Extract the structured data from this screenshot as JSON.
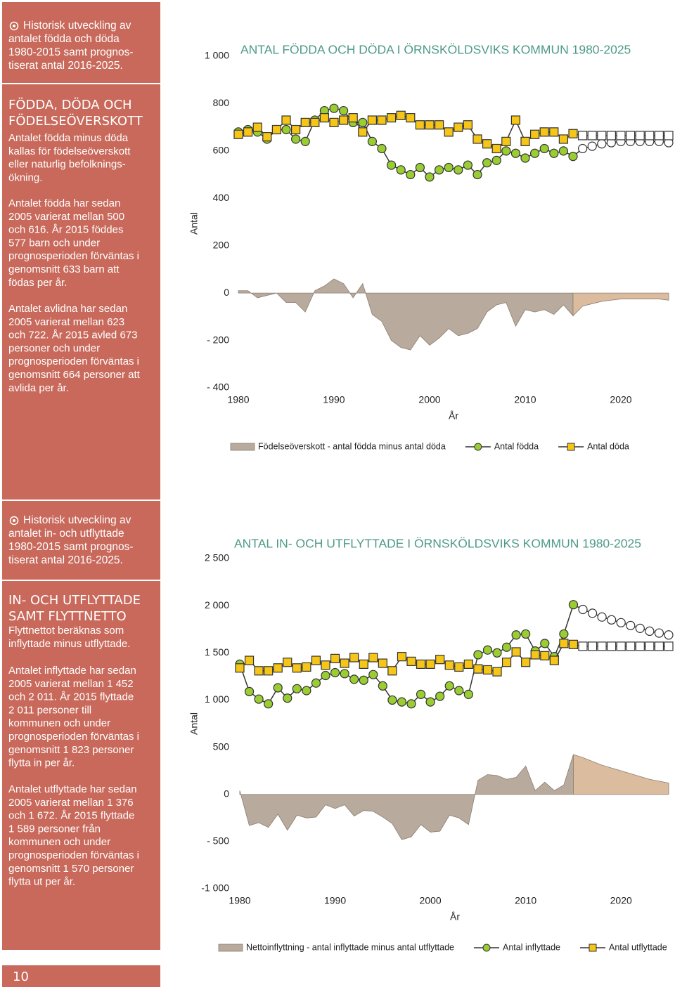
{
  "sidebar": [
    {
      "heading": [
        "Historisk utveckling av",
        "antalet födda och döda",
        "1980-2015 samt prognos-",
        "tiserat antal 2016-2025."
      ],
      "section_title": [
        "FÖDDA, DÖDA OCH",
        "FÖDELSEÖVERSKOTT"
      ],
      "paragraphs": [
        [
          "Antalet födda minus döda",
          "kallas för födelseöverskott",
          "eller naturlig befolknings-",
          "ökning."
        ],
        [
          "Antalet födda har sedan",
          "2005 varierat mellan 500",
          "och 616. År 2015 föddes",
          "577 barn och under",
          "prognosperioden förväntas i",
          "genomsnitt 633 barn att",
          "födas per år."
        ],
        [
          "Antalet avlidna har sedan",
          "2005 varierat mellan 623",
          "och 722. År 2015 avled 673",
          "personer och under",
          "prognosperioden förväntas i",
          "genomsnitt 664 personer att",
          "avlida per år."
        ]
      ]
    },
    {
      "heading": [
        "Historisk utveckling av",
        "antalet in- och utflyttade",
        "1980-2015 samt prognos-",
        "tiserat antal 2016-2025."
      ],
      "section_title": [
        "IN- OCH UTFLYTTADE",
        "SAMT FLYTTNETTO"
      ],
      "paragraphs": [
        [
          "Flyttnettot beräknas som",
          "inflyttade minus utflyttade."
        ],
        [
          "Antalet inflyttade har sedan",
          "2005 varierat mellan 1 452",
          "och 2 011. År 2015 flyttade",
          "2 011 personer till",
          "kommunen och under",
          "prognosperioden förväntas i",
          "genomsnitt 1 823 personer",
          "flytta in per år."
        ],
        [
          "Antalet utflyttade har sedan",
          "2005 varierat mellan 1 376",
          "och 1 672. År 2015 flyttade",
          "1 589 personer från",
          "kommunen och under",
          "prognosperioden förväntas i",
          "genomsnitt 1 570 personer",
          "flytta ut per år."
        ]
      ]
    }
  ],
  "page_number": "10",
  "chart_data": [
    {
      "type": "combo",
      "title": "ANTAL FÖDDA OCH DÖDA I ÖRNSKÖLDSVIKS KOMMUN 1980-2025",
      "x_label": "År",
      "y_label": "Antal",
      "x": [
        1980,
        1981,
        1982,
        1983,
        1984,
        1985,
        1986,
        1987,
        1988,
        1989,
        1990,
        1991,
        1992,
        1993,
        1994,
        1995,
        1996,
        1997,
        1998,
        1999,
        2000,
        2001,
        2002,
        2003,
        2004,
        2005,
        2006,
        2007,
        2008,
        2009,
        2010,
        2011,
        2012,
        2013,
        2014,
        2015,
        2016,
        2017,
        2018,
        2019,
        2020,
        2021,
        2022,
        2023,
        2024,
        2025
      ],
      "xlim": [
        1980,
        2025
      ],
      "xticks": [
        1980,
        1990,
        2000,
        2010,
        2020
      ],
      "ylim": [
        -400,
        1000
      ],
      "yticks": [
        {
          "value": -400,
          "label": "- 400"
        },
        {
          "value": -200,
          "label": "- 200"
        },
        0,
        200,
        400,
        600,
        800,
        {
          "value": 1000,
          "label": "1 000"
        }
      ],
      "forecast_start": 2016,
      "series": [
        {
          "name": "Födelseöverskott - antal födda minus antal döda",
          "type": "area",
          "color": "#b8aa9c",
          "forecast_color": "#dcbc9f",
          "values": [
            10,
            10,
            -20,
            -10,
            0,
            -40,
            -40,
            -80,
            10,
            30,
            60,
            40,
            -20,
            40,
            -90,
            -120,
            -200,
            -230,
            -240,
            -180,
            -220,
            -190,
            -150,
            -180,
            -170,
            -150,
            -80,
            -50,
            -40,
            -140,
            -70,
            -80,
            -70,
            -90,
            -50,
            -96,
            -55,
            -45,
            -35,
            -30,
            -25,
            -25,
            -25,
            -25,
            -25,
            -30
          ]
        },
        {
          "name": "Antal födda",
          "type": "line",
          "marker": "circle",
          "color": "#9acd32",
          "forecast_color": "#ffffff",
          "values": [
            680,
            690,
            680,
            650,
            690,
            690,
            650,
            640,
            730,
            770,
            780,
            770,
            720,
            720,
            640,
            610,
            540,
            520,
            500,
            530,
            490,
            520,
            530,
            520,
            540,
            500,
            550,
            560,
            600,
            590,
            570,
            590,
            610,
            590,
            600,
            577,
            610,
            620,
            630,
            635,
            640,
            640,
            640,
            640,
            640,
            635
          ]
        },
        {
          "name": "Antal döda",
          "type": "line",
          "marker": "square",
          "color": "#f5c518",
          "forecast_color": "#ffffff",
          "values": [
            670,
            680,
            700,
            660,
            690,
            730,
            690,
            720,
            720,
            740,
            720,
            730,
            740,
            680,
            730,
            730,
            740,
            750,
            740,
            710,
            710,
            710,
            680,
            700,
            710,
            650,
            630,
            610,
            640,
            730,
            640,
            670,
            680,
            680,
            650,
            673,
            665,
            665,
            665,
            665,
            665,
            665,
            665,
            665,
            665,
            665
          ]
        }
      ]
    },
    {
      "type": "combo",
      "title": "ANTAL IN- OCH UTFLYTTADE I ÖRNSKÖLDSVIKS KOMMUN 1980-2025",
      "x_label": "År",
      "y_label": "Antal",
      "x": [
        1980,
        1981,
        1982,
        1983,
        1984,
        1985,
        1986,
        1987,
        1988,
        1989,
        1990,
        1991,
        1992,
        1993,
        1994,
        1995,
        1996,
        1997,
        1998,
        1999,
        2000,
        2001,
        2002,
        2003,
        2004,
        2005,
        2006,
        2007,
        2008,
        2009,
        2010,
        2011,
        2012,
        2013,
        2014,
        2015,
        2016,
        2017,
        2018,
        2019,
        2020,
        2021,
        2022,
        2023,
        2024,
        2025
      ],
      "xlim": [
        1980,
        2025
      ],
      "xticks": [
        1980,
        1990,
        2000,
        2010,
        2020
      ],
      "ylim": [
        -1000,
        2500
      ],
      "yticks": [
        {
          "value": -1000,
          "label": "-1 000"
        },
        {
          "value": -500,
          "label": "- 500"
        },
        0,
        500,
        {
          "value": 1000,
          "label": "1 000"
        },
        {
          "value": 1500,
          "label": "1 500"
        },
        {
          "value": 2000,
          "label": "2 000"
        },
        {
          "value": 2500,
          "label": "2 500"
        }
      ],
      "forecast_start": 2016,
      "series": [
        {
          "name": "Nettoinflyttning - antal inflyttade minus antal utflyttade",
          "type": "area",
          "color": "#b8aa9c",
          "forecast_color": "#dcbc9f",
          "values": [
            40,
            -330,
            -300,
            -350,
            -210,
            -380,
            -220,
            -250,
            -240,
            -110,
            -150,
            -110,
            -230,
            -170,
            -180,
            -240,
            -310,
            -480,
            -450,
            -320,
            -400,
            -390,
            -220,
            -250,
            -320,
            150,
            210,
            200,
            160,
            180,
            300,
            40,
            130,
            40,
            100,
            422,
            390,
            350,
            310,
            280,
            250,
            220,
            190,
            160,
            140,
            120
          ]
        },
        {
          "name": "Antal inflyttade",
          "type": "line",
          "marker": "circle",
          "color": "#9acd32",
          "forecast_color": "#ffffff",
          "values": [
            1380,
            1090,
            1010,
            960,
            1130,
            1020,
            1120,
            1100,
            1180,
            1260,
            1290,
            1280,
            1220,
            1210,
            1270,
            1150,
            1000,
            980,
            960,
            1060,
            980,
            1040,
            1150,
            1100,
            1060,
            1480,
            1530,
            1500,
            1560,
            1690,
            1700,
            1520,
            1600,
            1460,
            1700,
            2011,
            1960,
            1920,
            1880,
            1850,
            1820,
            1790,
            1760,
            1730,
            1710,
            1690
          ]
        },
        {
          "name": "Antal utflyttade",
          "type": "line",
          "marker": "square",
          "color": "#f5c518",
          "forecast_color": "#ffffff",
          "values": [
            1340,
            1420,
            1310,
            1310,
            1340,
            1400,
            1340,
            1350,
            1420,
            1370,
            1440,
            1390,
            1450,
            1380,
            1450,
            1390,
            1310,
            1460,
            1410,
            1380,
            1380,
            1430,
            1370,
            1350,
            1380,
            1330,
            1320,
            1300,
            1400,
            1510,
            1400,
            1480,
            1470,
            1420,
            1600,
            1589,
            1570,
            1570,
            1570,
            1570,
            1570,
            1570,
            1570,
            1570,
            1570,
            1570
          ]
        }
      ]
    }
  ]
}
